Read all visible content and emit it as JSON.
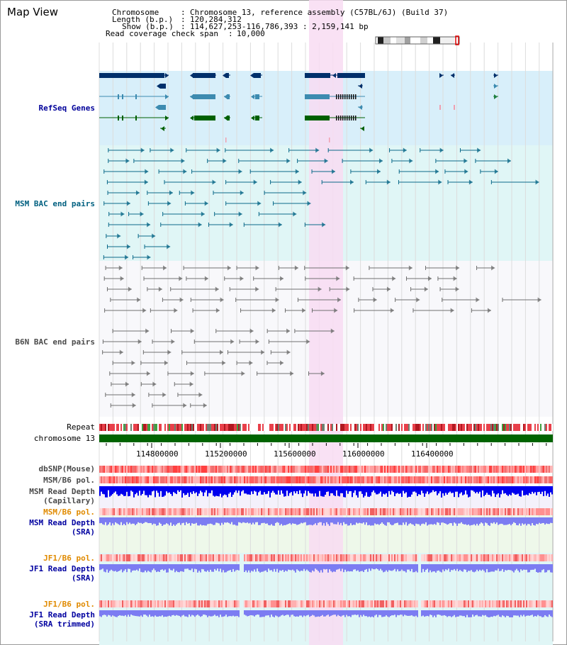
{
  "title": "Map View",
  "info": {
    "chromosome_key": "Chromosome",
    "chromosome_val": "Chromosome 13, reference assembly (C57BL/6J) (Build 37)",
    "length_key": "Length (b.p.)",
    "length_val": "120,284,312",
    "show_key": "Show (b.p.)",
    "show_val": "114,627,253-116,786,393 : 2,159,141 bp",
    "coverage_key": "Read coverage check span",
    "coverage_val": "10,000"
  },
  "tracks": {
    "refseq": "RefSeq Genes",
    "msm_bac": "MSM BAC end pairs",
    "b6n_bac": "B6N BAC end pairs",
    "repeat": "Repeat",
    "chromosome": "chromosome 13",
    "dbsnp": "dbSNP(Mouse)",
    "msm_pol": "MSM/B6 pol.",
    "msm_depth_cap_1": "MSM Read Depth",
    "msm_depth_cap_2": "(Capillary)",
    "msm_pol_sra": "MSM/B6 pol.",
    "msm_depth_sra_1": "MSM Read Depth",
    "msm_depth_sra_2": "(SRA)",
    "jf1_pol": "JF1/B6 pol.",
    "jf1_depth_1": "JF1 Read Depth",
    "jf1_depth_2": "(SRA)",
    "jf1_pol_t": "JF1/B6 pol.",
    "jf1_depth_t_1": "JF1 Read Depth",
    "jf1_depth_t_2": "(SRA trimmed)"
  },
  "axis": {
    "ticks": [
      "114800000",
      "115200000",
      "115600000",
      "116000000",
      "116400000"
    ]
  },
  "colors": {
    "refseq_band": "#d8effa",
    "msm_band": "#e0f6f6",
    "highlight": "#f8dcf2",
    "gene_navy": "#002f6a",
    "gene_teal": "#3d8bb0",
    "gene_green": "#006000",
    "msm_pair": "#0c6a8a",
    "b6n_pair": "#707070",
    "chromosome_bar": "#006400",
    "depth_capillary": "#0000ee",
    "depth_sra": "#7c7cf2"
  }
}
